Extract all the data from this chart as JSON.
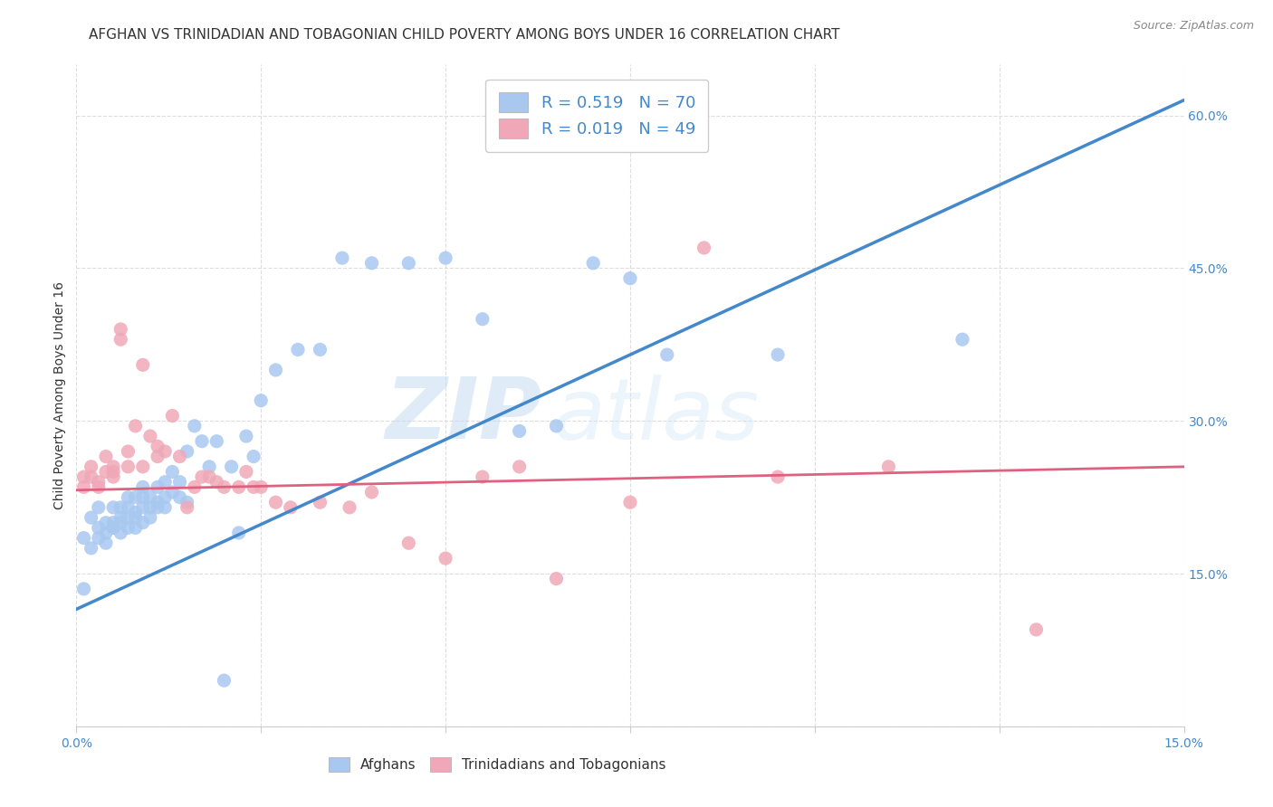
{
  "title": "AFGHAN VS TRINIDADIAN AND TOBAGONIAN CHILD POVERTY AMONG BOYS UNDER 16 CORRELATION CHART",
  "source": "Source: ZipAtlas.com",
  "ylabel": "Child Poverty Among Boys Under 16",
  "xlim": [
    0.0,
    0.15
  ],
  "ylim": [
    0.0,
    0.65
  ],
  "xticks": [
    0.0,
    0.025,
    0.05,
    0.075,
    0.1,
    0.125,
    0.15
  ],
  "yticks": [
    0.0,
    0.15,
    0.3,
    0.45,
    0.6
  ],
  "xtick_labels": [
    "0.0%",
    "",
    "",
    "",
    "",
    "",
    "15.0%"
  ],
  "ytick_labels": [
    "",
    "15.0%",
    "30.0%",
    "45.0%",
    "60.0%"
  ],
  "blue_color": "#A8C8F0",
  "pink_color": "#F0A8B8",
  "blue_line_color": "#4488CC",
  "pink_line_color": "#E06080",
  "watermark_zip": "ZIP",
  "watermark_atlas": "atlas",
  "blue_scatter_x": [
    0.001,
    0.001,
    0.002,
    0.002,
    0.003,
    0.003,
    0.003,
    0.004,
    0.004,
    0.004,
    0.005,
    0.005,
    0.005,
    0.005,
    0.006,
    0.006,
    0.006,
    0.006,
    0.007,
    0.007,
    0.007,
    0.007,
    0.008,
    0.008,
    0.008,
    0.008,
    0.009,
    0.009,
    0.009,
    0.009,
    0.01,
    0.01,
    0.01,
    0.011,
    0.011,
    0.011,
    0.012,
    0.012,
    0.012,
    0.013,
    0.013,
    0.014,
    0.014,
    0.015,
    0.015,
    0.016,
    0.017,
    0.018,
    0.019,
    0.02,
    0.021,
    0.022,
    0.023,
    0.024,
    0.025,
    0.027,
    0.03,
    0.033,
    0.036,
    0.04,
    0.045,
    0.05,
    0.055,
    0.06,
    0.065,
    0.07,
    0.075,
    0.08,
    0.095,
    0.12
  ],
  "blue_scatter_y": [
    0.135,
    0.185,
    0.175,
    0.205,
    0.185,
    0.195,
    0.215,
    0.18,
    0.19,
    0.2,
    0.195,
    0.2,
    0.195,
    0.215,
    0.19,
    0.2,
    0.205,
    0.215,
    0.195,
    0.205,
    0.215,
    0.225,
    0.195,
    0.205,
    0.21,
    0.225,
    0.2,
    0.215,
    0.225,
    0.235,
    0.205,
    0.215,
    0.225,
    0.215,
    0.22,
    0.235,
    0.215,
    0.225,
    0.24,
    0.23,
    0.25,
    0.225,
    0.24,
    0.22,
    0.27,
    0.295,
    0.28,
    0.255,
    0.28,
    0.045,
    0.255,
    0.19,
    0.285,
    0.265,
    0.32,
    0.35,
    0.37,
    0.37,
    0.46,
    0.455,
    0.455,
    0.46,
    0.4,
    0.29,
    0.295,
    0.455,
    0.44,
    0.365,
    0.365,
    0.38
  ],
  "pink_scatter_x": [
    0.001,
    0.001,
    0.002,
    0.002,
    0.003,
    0.003,
    0.004,
    0.004,
    0.005,
    0.005,
    0.005,
    0.006,
    0.006,
    0.007,
    0.007,
    0.008,
    0.009,
    0.009,
    0.01,
    0.011,
    0.011,
    0.012,
    0.013,
    0.014,
    0.015,
    0.016,
    0.017,
    0.018,
    0.019,
    0.02,
    0.022,
    0.023,
    0.024,
    0.025,
    0.027,
    0.029,
    0.033,
    0.037,
    0.04,
    0.045,
    0.05,
    0.055,
    0.06,
    0.065,
    0.075,
    0.085,
    0.095,
    0.11,
    0.13
  ],
  "pink_scatter_y": [
    0.235,
    0.245,
    0.245,
    0.255,
    0.235,
    0.24,
    0.265,
    0.25,
    0.25,
    0.245,
    0.255,
    0.38,
    0.39,
    0.255,
    0.27,
    0.295,
    0.355,
    0.255,
    0.285,
    0.265,
    0.275,
    0.27,
    0.305,
    0.265,
    0.215,
    0.235,
    0.245,
    0.245,
    0.24,
    0.235,
    0.235,
    0.25,
    0.235,
    0.235,
    0.22,
    0.215,
    0.22,
    0.215,
    0.23,
    0.18,
    0.165,
    0.245,
    0.255,
    0.145,
    0.22,
    0.47,
    0.245,
    0.255,
    0.095
  ],
  "blue_trend_x": [
    0.0,
    0.15
  ],
  "blue_trend_y": [
    0.115,
    0.615
  ],
  "pink_trend_x": [
    0.0,
    0.15
  ],
  "pink_trend_y": [
    0.232,
    0.255
  ],
  "grid_color": "#DDDDDD",
  "background_color": "#FFFFFF",
  "title_fontsize": 11,
  "axis_label_fontsize": 10,
  "tick_fontsize": 10,
  "scatter_size": 120
}
